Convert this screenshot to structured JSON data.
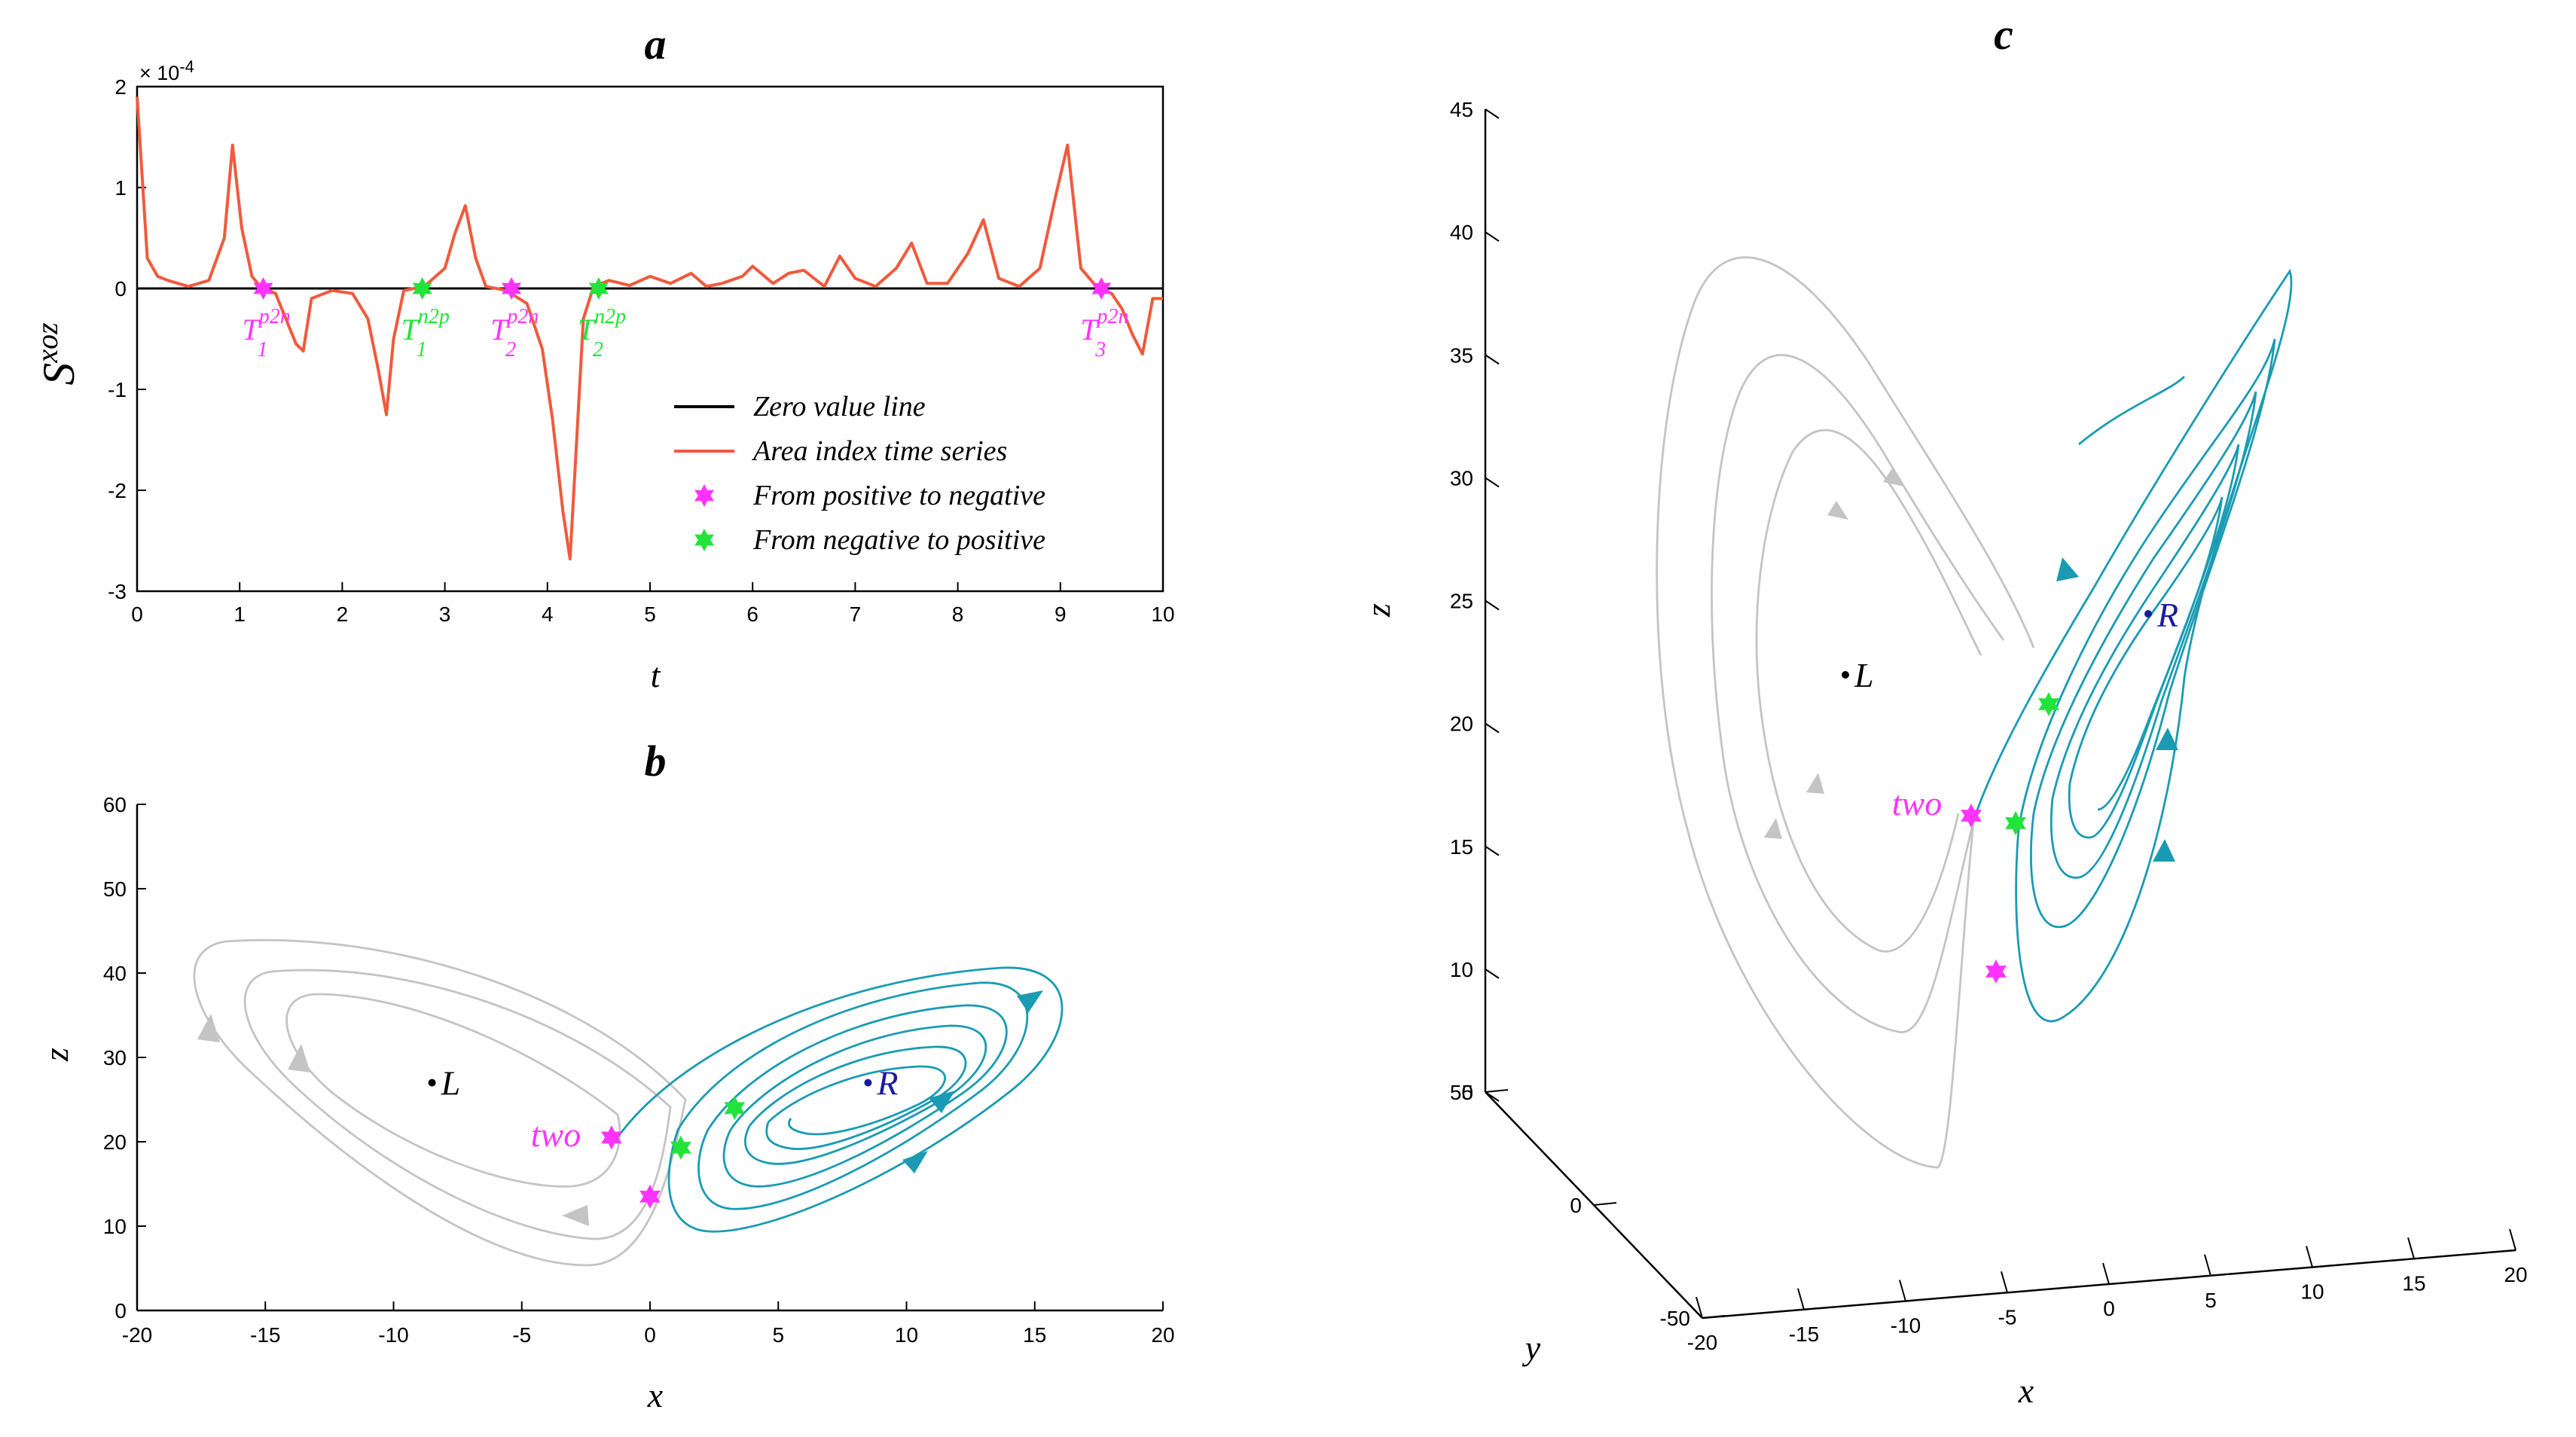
{
  "colors": {
    "series": "#f05a3c",
    "zero": "#000000",
    "pos_to_neg": "#ff33ff",
    "neg_to_pos": "#22e33a",
    "grey_orbit": "#c4c4c4",
    "teal_orbit": "#1a9bb3",
    "R_label": "#1a1aa0"
  },
  "chart_data": [
    {
      "id": "a",
      "type": "line",
      "title": "a",
      "xlabel": "t",
      "ylabel": "S^xoz",
      "ylabel_base": "S",
      "ylabel_sup": "xoz",
      "exponent_label": "× 10",
      "exponent_power": "-4",
      "xlim": [
        0,
        10
      ],
      "ylim": [
        -3,
        2
      ],
      "xticks": [
        "0",
        "1",
        "2",
        "3",
        "4",
        "5",
        "6",
        "7",
        "8",
        "9",
        "10"
      ],
      "yticks": [
        "2",
        "1",
        "0",
        "-1",
        "-2",
        "-3"
      ],
      "series": [
        {
          "name": "Area index time series",
          "x": [
            0,
            0.05,
            0.1,
            0.2,
            0.3,
            0.5,
            0.7,
            0.85,
            0.93,
            1.02,
            1.12,
            1.2,
            1.35,
            1.45,
            1.55,
            1.62,
            1.7,
            1.9,
            2.1,
            2.25,
            2.35,
            2.43,
            2.5,
            2.6,
            2.8,
            3.0,
            3.1,
            3.2,
            3.3,
            3.4,
            3.6,
            3.8,
            3.95,
            4.05,
            4.15,
            4.22,
            4.28,
            4.35,
            4.45,
            4.6,
            4.8,
            5.0,
            5.2,
            5.4,
            5.55,
            5.7,
            5.9,
            6.0,
            6.2,
            6.35,
            6.5,
            6.7,
            6.85,
            7.0,
            7.2,
            7.4,
            7.55,
            7.7,
            7.9,
            8.1,
            8.25,
            8.4,
            8.6,
            8.8,
            8.95,
            9.07,
            9.2,
            9.35,
            9.5,
            9.6,
            9.7,
            9.8,
            9.9,
            10
          ],
          "values": [
            1.9,
            1.1,
            0.3,
            0.12,
            0.08,
            0.02,
            0.08,
            0.5,
            1.42,
            0.6,
            0.12,
            0.02,
            -0.05,
            -0.3,
            -0.55,
            -0.62,
            -0.1,
            -0.02,
            -0.05,
            -0.3,
            -0.8,
            -1.25,
            -0.5,
            -0.02,
            0.02,
            0.2,
            0.55,
            0.82,
            0.3,
            0.02,
            -0.02,
            -0.15,
            -0.6,
            -1.3,
            -2.2,
            -2.68,
            -1.6,
            -0.3,
            0.02,
            0.08,
            0.03,
            0.12,
            0.05,
            0.15,
            0.02,
            0.05,
            0.12,
            0.22,
            0.05,
            0.15,
            0.18,
            0.02,
            0.32,
            0.1,
            0.02,
            0.2,
            0.45,
            0.05,
            0.05,
            0.35,
            0.68,
            0.1,
            0.02,
            0.2,
            0.9,
            1.42,
            0.2,
            0.02,
            -0.05,
            -0.2,
            -0.45,
            -0.65,
            -0.1,
            -0.1
          ]
        },
        {
          "name": "Zero value line",
          "x": [
            0,
            10
          ],
          "values": [
            0,
            0
          ]
        }
      ],
      "markers": [
        {
          "type": "pos_to_neg",
          "x": 1.23,
          "y": 0,
          "label": "T",
          "sup": "p2n",
          "sub": "1"
        },
        {
          "type": "neg_to_pos",
          "x": 2.78,
          "y": 0,
          "label": "T",
          "sup": "n2p",
          "sub": "1"
        },
        {
          "type": "pos_to_neg",
          "x": 3.65,
          "y": 0,
          "label": "T",
          "sup": "p2n",
          "sub": "2"
        },
        {
          "type": "neg_to_pos",
          "x": 4.5,
          "y": 0,
          "label": "T",
          "sup": "n2p",
          "sub": "2"
        },
        {
          "type": "pos_to_neg",
          "x": 9.4,
          "y": 0,
          "label": "T",
          "sup": "p2n",
          "sub": "3"
        }
      ],
      "legend": [
        {
          "label": "Zero value line",
          "kind": "line",
          "color_key": "zero"
        },
        {
          "label": "Area index time series",
          "kind": "line",
          "color_key": "series"
        },
        {
          "label": "From positive to negative",
          "kind": "marker",
          "color_key": "pos_to_neg"
        },
        {
          "label": "From negative to positive",
          "kind": "marker",
          "color_key": "neg_to_pos"
        }
      ],
      "legend_position": "lower-right"
    },
    {
      "id": "b",
      "type": "line",
      "title": "b",
      "xlabel": "x",
      "ylabel": "z",
      "xlim": [
        -20,
        20
      ],
      "ylim": [
        0,
        60
      ],
      "xticks": [
        "-20",
        "-15",
        "-10",
        "-5",
        "0",
        "5",
        "10",
        "15",
        "20"
      ],
      "yticks": [
        "60",
        "50",
        "40",
        "30",
        "20",
        "10",
        "0"
      ],
      "points": [
        {
          "name": "L",
          "label": "L",
          "x": -8.5,
          "z": 27
        },
        {
          "name": "R",
          "label": "R",
          "x": 8.5,
          "z": 27
        }
      ],
      "markers": [
        {
          "type": "pos_to_neg",
          "x": -1.5,
          "z": 20.5
        },
        {
          "type": "pos_to_neg",
          "x": 0,
          "z": 13.5
        },
        {
          "type": "neg_to_pos",
          "x": 1.2,
          "z": 19.3
        },
        {
          "type": "neg_to_pos",
          "x": 3.3,
          "z": 24
        }
      ],
      "annotation": "two"
    },
    {
      "id": "c",
      "type": "line",
      "title": "c",
      "xlabel": "x",
      "ylabel": "y",
      "zlabel": "z",
      "xlim": [
        -20,
        20
      ],
      "ylim": [
        -50,
        50
      ],
      "zlim": [
        5,
        45
      ],
      "xticks": [
        "-20",
        "-15",
        "-10",
        "-5",
        "0",
        "5",
        "10",
        "15",
        "20"
      ],
      "yticks": [
        "50",
        "0",
        "-50"
      ],
      "zticks": [
        "45",
        "40",
        "35",
        "30",
        "25",
        "20",
        "15",
        "10",
        "5"
      ],
      "points": [
        {
          "name": "L",
          "label": "L"
        },
        {
          "name": "R",
          "label": "R"
        }
      ],
      "annotation": "two"
    }
  ]
}
